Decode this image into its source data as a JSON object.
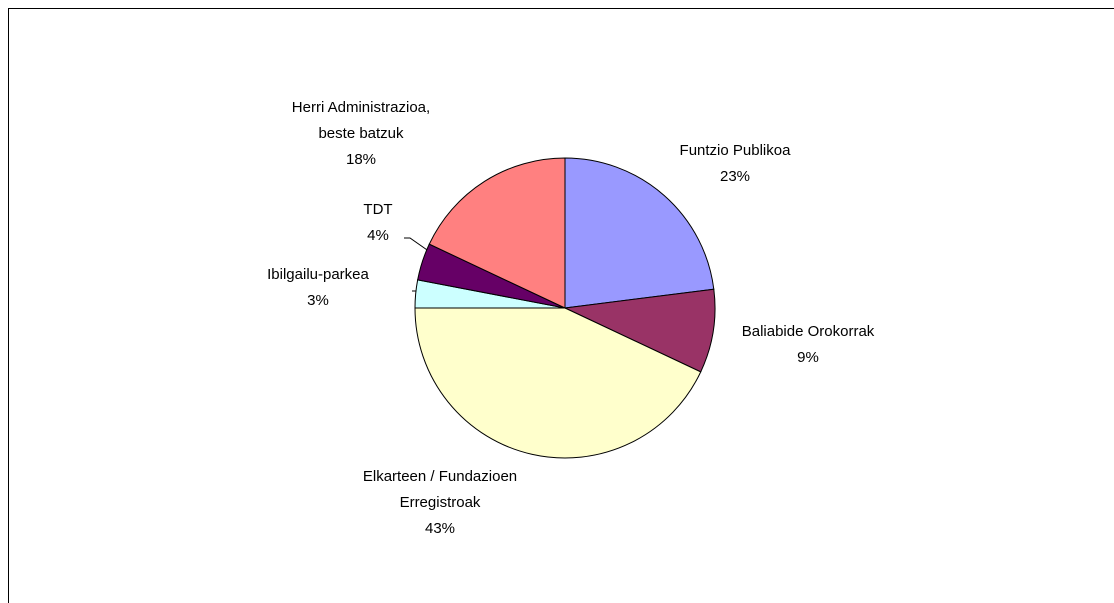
{
  "chart_data": {
    "type": "pie",
    "categories": [
      "Funtzio Publikoa",
      "Baliabide Orokorrak",
      "Elkarteen / Fundazioen Erregistroak",
      "Ibilgailu-parkea",
      "TDT",
      "Herri Administrazioa, beste batzuk"
    ],
    "values": [
      23,
      9,
      43,
      3,
      4,
      18
    ],
    "value_labels": [
      "23%",
      "9%",
      "43%",
      "3%",
      "4%",
      "18%"
    ],
    "colors": [
      "#9999ff",
      "#993366",
      "#ffffcc",
      "#ccffff",
      "#660066",
      "#ff8080"
    ]
  }
}
